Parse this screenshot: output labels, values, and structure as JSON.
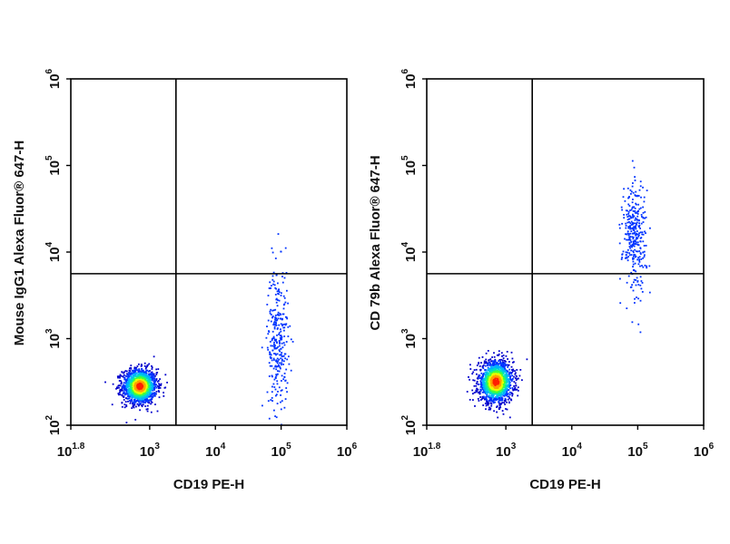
{
  "chart_data": [
    {
      "type": "scatter",
      "subtype": "flow-cytometry-density-dot-plot",
      "xlabel": "CD19 PE-H",
      "ylabel": "Mouse IgG1 Alexa Fluor® 647-H",
      "xscale": "log",
      "yscale": "log",
      "xlim_log10": [
        1.8,
        6
      ],
      "ylim_log10": [
        2,
        6
      ],
      "x_ticks": [
        {
          "base": "10",
          "exp": "1.8"
        },
        {
          "base": "10",
          "exp": "3"
        },
        {
          "base": "10",
          "exp": "4"
        },
        {
          "base": "10",
          "exp": "5"
        },
        {
          "base": "10",
          "exp": "6"
        }
      ],
      "y_ticks": [
        {
          "base": "10",
          "exp": "2"
        },
        {
          "base": "10",
          "exp": "3"
        },
        {
          "base": "10",
          "exp": "4"
        },
        {
          "base": "10",
          "exp": "5"
        },
        {
          "base": "10",
          "exp": "6"
        }
      ],
      "quadrant_gates_log10": {
        "x": 3.4,
        "y": 3.75
      },
      "populations": [
        {
          "name_visible": false,
          "center_log10": [
            2.85,
            2.45
          ],
          "spread_log10": [
            0.13,
            0.1
          ],
          "count": 1500,
          "density": "high"
        },
        {
          "name_visible": false,
          "center_log10": [
            4.95,
            3.0
          ],
          "spread_log10": [
            0.08,
            0.42
          ],
          "count": 300,
          "density": "low"
        }
      ],
      "colormap": [
        "#0000cc",
        "#0033ff",
        "#00b0ff",
        "#00e0c0",
        "#40ff40",
        "#e8ff00",
        "#ffa000",
        "#ff2000"
      ],
      "grid": false,
      "legend": "none"
    },
    {
      "type": "scatter",
      "subtype": "flow-cytometry-density-dot-plot",
      "xlabel": "CD19 PE-H",
      "ylabel": "CD 79b Alexa Fluor® 647-H",
      "xscale": "log",
      "yscale": "log",
      "xlim_log10": [
        1.8,
        6
      ],
      "ylim_log10": [
        2,
        6
      ],
      "x_ticks": [
        {
          "base": "10",
          "exp": "1.8"
        },
        {
          "base": "10",
          "exp": "3"
        },
        {
          "base": "10",
          "exp": "4"
        },
        {
          "base": "10",
          "exp": "5"
        },
        {
          "base": "10",
          "exp": "6"
        }
      ],
      "y_ticks": [
        {
          "base": "10",
          "exp": "2"
        },
        {
          "base": "10",
          "exp": "3"
        },
        {
          "base": "10",
          "exp": "4"
        },
        {
          "base": "10",
          "exp": "5"
        },
        {
          "base": "10",
          "exp": "6"
        }
      ],
      "quadrant_gates_log10": {
        "x": 3.4,
        "y": 3.75
      },
      "populations": [
        {
          "name_visible": false,
          "center_log10": [
            2.85,
            2.5
          ],
          "spread_log10": [
            0.13,
            0.12
          ],
          "count": 1500,
          "density": "high"
        },
        {
          "name_visible": false,
          "center_log10": [
            4.95,
            4.2
          ],
          "spread_log10": [
            0.09,
            0.32
          ],
          "count": 320,
          "density": "low"
        }
      ],
      "colormap": [
        "#0000cc",
        "#0033ff",
        "#00b0ff",
        "#00e0c0",
        "#40ff40",
        "#e8ff00",
        "#ffa000",
        "#ff2000"
      ],
      "grid": false,
      "legend": "none"
    }
  ]
}
